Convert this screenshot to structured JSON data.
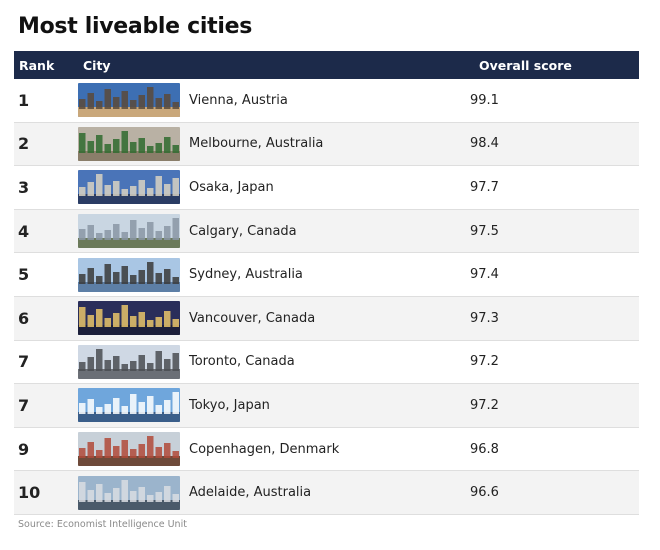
{
  "title": "Most liveable cities",
  "source": "Source: Economist Intelligence Unit",
  "chart_data": {
    "type": "table",
    "title": "Most liveable cities",
    "columns": [
      "Rank",
      "City",
      "Overall score"
    ],
    "rows": [
      {
        "rank": "1",
        "city": "Vienna, Austria",
        "score": "99.1"
      },
      {
        "rank": "2",
        "city": "Melbourne, Australia",
        "score": "98.4"
      },
      {
        "rank": "3",
        "city": "Osaka, Japan",
        "score": "97.7"
      },
      {
        "rank": "4",
        "city": "Calgary, Canada",
        "score": "97.5"
      },
      {
        "rank": "5",
        "city": "Sydney, Australia",
        "score": "97.4"
      },
      {
        "rank": "6",
        "city": "Vancouver, Canada",
        "score": "97.3"
      },
      {
        "rank": "7",
        "city": "Toronto, Canada",
        "score": "97.2"
      },
      {
        "rank": "7",
        "city": "Tokyo, Japan",
        "score": "97.2"
      },
      {
        "rank": "9",
        "city": "Copenhagen, Denmark",
        "score": "96.8"
      },
      {
        "rank": "10",
        "city": "Adelaide, Australia",
        "score": "96.6"
      }
    ]
  },
  "colors": {
    "header_bg": "#1c2a4a",
    "row_alt_bg": "#f3f3f3"
  },
  "thumbnails": [
    {
      "icon": "vienna-photo-icon",
      "sky": "#3d6fb3",
      "ground": "#c9a77a",
      "accent": "#5a4a3a"
    },
    {
      "icon": "melbourne-tram-photo-icon",
      "sky": "#b9b1a4",
      "ground": "#8a7e6a",
      "accent": "#2f6b2f"
    },
    {
      "icon": "osaka-photo-icon",
      "sky": "#4a74b8",
      "ground": "#2a3c64",
      "accent": "#d8d2c2"
    },
    {
      "icon": "calgary-photo-icon",
      "sky": "#c9d6e2",
      "ground": "#6b7a5a",
      "accent": "#8a96a4"
    },
    {
      "icon": "sydney-bridge-photo-icon",
      "sky": "#a9c6e4",
      "ground": "#5d7fa6",
      "accent": "#3a3a3a"
    },
    {
      "icon": "vancouver-photo-icon",
      "sky": "#2a2e5a",
      "ground": "#1c1f3a",
      "accent": "#e9c46a"
    },
    {
      "icon": "toronto-photo-icon",
      "sky": "#cfd8e4",
      "ground": "#6b6f76",
      "accent": "#4a4d52"
    },
    {
      "icon": "tokyo-photo-icon",
      "sky": "#6fa6dc",
      "ground": "#3a5e8a",
      "accent": "#ffffff"
    },
    {
      "icon": "copenhagen-photo-icon",
      "sky": "#c7d0d8",
      "ground": "#6e4a3a",
      "accent": "#b04a3a"
    },
    {
      "icon": "adelaide-photo-icon",
      "sky": "#9bb4cc",
      "ground": "#4a5a6a",
      "accent": "#d9dde2"
    }
  ]
}
